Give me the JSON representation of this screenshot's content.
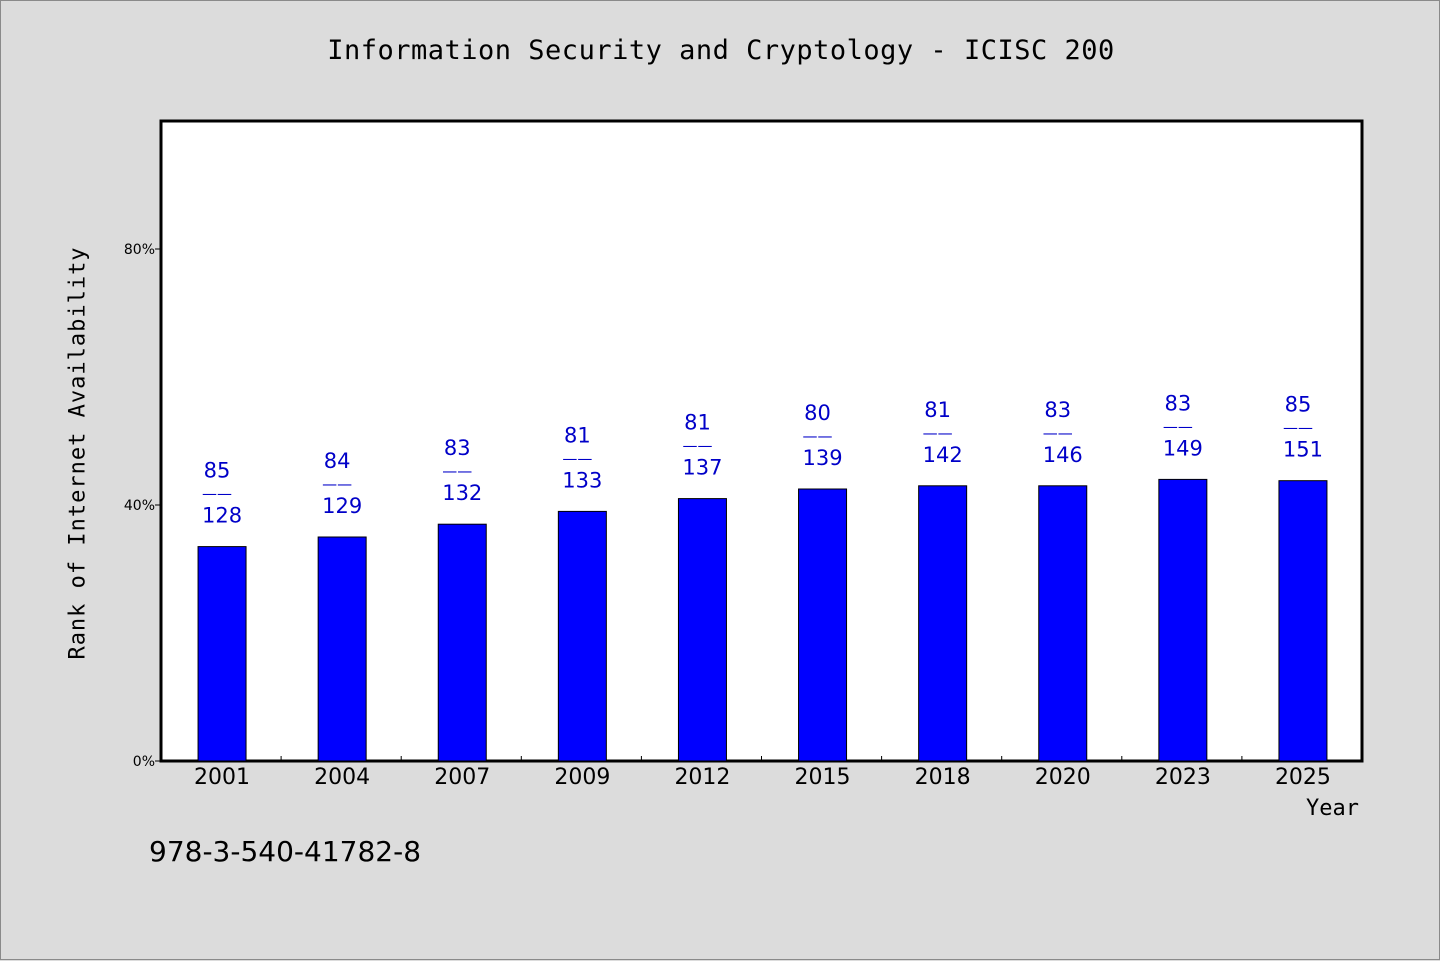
{
  "chart_data": {
    "type": "bar",
    "title": "Information Security and Cryptology - ICISC 200",
    "xlabel": "Year",
    "ylabel": "Rank of Internet Availability",
    "ylim": [
      0,
      100
    ],
    "yticks": [
      {
        "value": 0,
        "label": "0%"
      },
      {
        "value": 40,
        "label": "40%"
      },
      {
        "value": 80,
        "label": "80%"
      }
    ],
    "categories": [
      "2001",
      "2004",
      "2007",
      "2009",
      "2012",
      "2015",
      "2018",
      "2020",
      "2023",
      "2025"
    ],
    "values": [
      33.5,
      35,
      37,
      39,
      41,
      42.5,
      43,
      43,
      44,
      43.8
    ],
    "data_labels": [
      {
        "top": "85",
        "bottom": "128"
      },
      {
        "top": "84",
        "bottom": "129"
      },
      {
        "top": "83",
        "bottom": "132"
      },
      {
        "top": "81",
        "bottom": "133"
      },
      {
        "top": "81",
        "bottom": "137"
      },
      {
        "top": "80",
        "bottom": "139"
      },
      {
        "top": "81",
        "bottom": "142"
      },
      {
        "top": "83",
        "bottom": "146"
      },
      {
        "top": "83",
        "bottom": "149"
      },
      {
        "top": "85",
        "bottom": "151"
      }
    ],
    "label_separator": "——",
    "grid": false,
    "colors": {
      "bar": "#0000ff",
      "label": "#0000c8",
      "plot_bg": "#ffffff",
      "page_bg": "#dcdcdc"
    }
  },
  "footer": {
    "isbn": "978-3-540-41782-8"
  }
}
